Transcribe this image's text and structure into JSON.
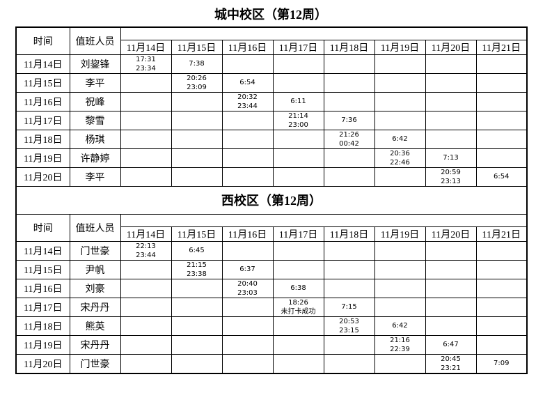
{
  "page": {
    "background": "#ffffff",
    "border_color": "#000000",
    "text_color": "#000000"
  },
  "header_labels": {
    "time": "时间",
    "person": "值班人员"
  },
  "dates": [
    "11月14日",
    "11月15日",
    "11月16日",
    "11月17日",
    "11月18日",
    "11月19日",
    "11月20日",
    "11月21日"
  ],
  "tables": [
    {
      "title": "城中校区（第12周）",
      "rows": [
        {
          "date": "11月14日",
          "person": "刘鋆锋",
          "times": [
            "17:31\n23:34",
            "7:38",
            "",
            "",
            "",
            "",
            "",
            ""
          ]
        },
        {
          "date": "11月15日",
          "person": "李平",
          "times": [
            "",
            "20:26\n23:09",
            "6:54",
            "",
            "",
            "",
            "",
            ""
          ]
        },
        {
          "date": "11月16日",
          "person": "祝峰",
          "times": [
            "",
            "",
            "20:32\n23:44",
            "6:11",
            "",
            "",
            "",
            ""
          ]
        },
        {
          "date": "11月17日",
          "person": "黎雪",
          "times": [
            "",
            "",
            "",
            "21:14\n23:00",
            "7:36",
            "",
            "",
            ""
          ]
        },
        {
          "date": "11月18日",
          "person": "杨琪",
          "times": [
            "",
            "",
            "",
            "",
            "21:26\n00:42",
            "6:42",
            "",
            ""
          ]
        },
        {
          "date": "11月19日",
          "person": "许静婷",
          "times": [
            "",
            "",
            "",
            "",
            "",
            "20:36\n22:46",
            "7:13",
            ""
          ]
        },
        {
          "date": "11月20日",
          "person": "李平",
          "times": [
            "",
            "",
            "",
            "",
            "",
            "",
            "20:59\n23:13",
            "6:54"
          ]
        }
      ]
    },
    {
      "title": "西校区（第12周）",
      "rows": [
        {
          "date": "11月14日",
          "person": "门世豪",
          "times": [
            "22:13\n23:44",
            "6:45",
            "",
            "",
            "",
            "",
            "",
            ""
          ]
        },
        {
          "date": "11月15日",
          "person": "尹帆",
          "times": [
            "",
            "21:15\n23:38",
            "6:37",
            "",
            "",
            "",
            "",
            ""
          ]
        },
        {
          "date": "11月16日",
          "person": "刘豪",
          "times": [
            "",
            "",
            "20:40\n23:03",
            "6:38",
            "",
            "",
            "",
            ""
          ]
        },
        {
          "date": "11月17日",
          "person": "宋丹丹",
          "times": [
            "",
            "",
            "",
            "18:26\n未打卡成功",
            "7:15",
            "",
            "",
            ""
          ]
        },
        {
          "date": "11月18日",
          "person": "熊英",
          "times": [
            "",
            "",
            "",
            "",
            "20:53\n23:15",
            "6:42",
            "",
            ""
          ]
        },
        {
          "date": "11月19日",
          "person": "宋丹丹",
          "times": [
            "",
            "",
            "",
            "",
            "",
            "21:16\n22:39",
            "6:47",
            ""
          ]
        },
        {
          "date": "11月20日",
          "person": "门世豪",
          "times": [
            "",
            "",
            "",
            "",
            "",
            "",
            "20:45\n23:21",
            "7:09"
          ]
        }
      ]
    }
  ]
}
